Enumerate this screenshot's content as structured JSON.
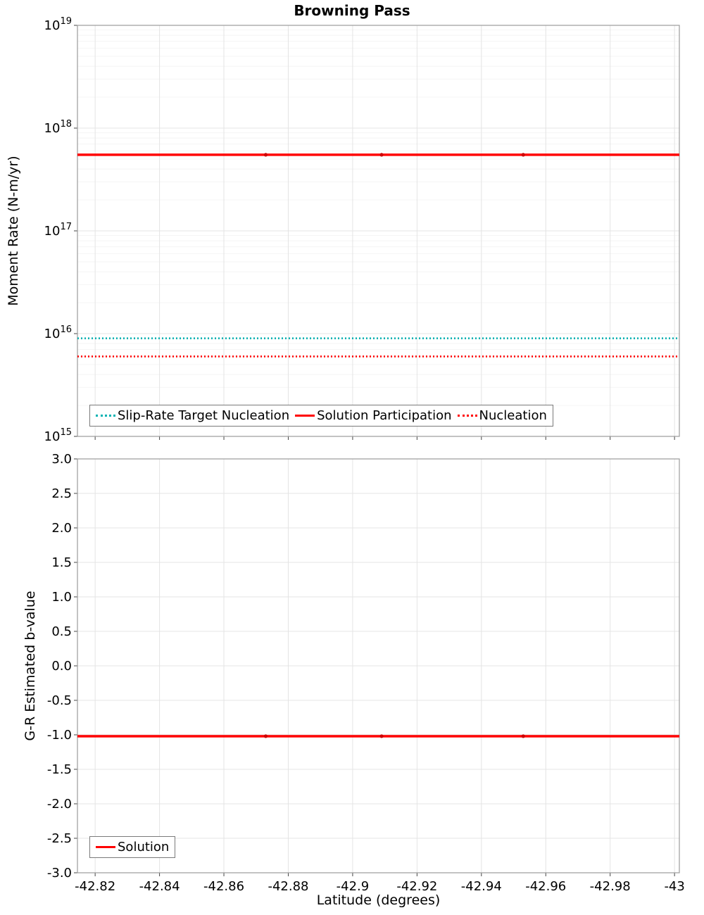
{
  "chart_data": [
    {
      "type": "line",
      "title": "Browning Pass",
      "ylabel": "Moment Rate (N-m/yr)",
      "yscale": "log",
      "ylog_min": 15,
      "ylog_max": 19,
      "y_tick_exponents": [
        19,
        18,
        17,
        16,
        15
      ],
      "xlim": [
        -42.8145,
        -43.0015
      ],
      "x_ticks": [
        -42.82,
        -42.84,
        -42.86,
        -42.88,
        -42.9,
        -42.92,
        -42.94,
        -42.96,
        -42.98,
        -43
      ],
      "x_tick_labels": [
        "-42.82",
        "-42.84",
        "-42.86",
        "-42.88",
        "-42.9",
        "-42.92",
        "-42.94",
        "-42.96",
        "-42.98",
        "-43"
      ],
      "grid": true,
      "legend_position": "bottom-left",
      "series": [
        {
          "name": "Slip-Rate Target Nucleation",
          "color": "#00b2b2",
          "style": "dotted",
          "value": 9000000000000000.0
        },
        {
          "name": "Solution Participation",
          "color": "#ff0000",
          "style": "solid",
          "value": 5.5e+17,
          "marker_color": "#cc0000",
          "marker_x": [
            -42.873,
            -42.909,
            -42.953
          ]
        },
        {
          "name": "Nucleation",
          "color": "#ff0000",
          "style": "dotted",
          "value": 6000000000000000.0
        }
      ]
    },
    {
      "type": "line",
      "title": "",
      "ylabel": "G-R Estimated b-value",
      "xlabel": "Latitude (degrees)",
      "yscale": "linear",
      "ylim": [
        -3.0,
        3.0
      ],
      "ytick_step": 0.5,
      "xlim": [
        -42.8145,
        -43.0015
      ],
      "x_ticks": [
        -42.82,
        -42.84,
        -42.86,
        -42.88,
        -42.9,
        -42.92,
        -42.94,
        -42.96,
        -42.98,
        -43
      ],
      "x_tick_labels": [
        "-42.82",
        "-42.84",
        "-42.86",
        "-42.88",
        "-42.9",
        "-42.92",
        "-42.94",
        "-42.96",
        "-42.98",
        "-43"
      ],
      "grid": true,
      "legend_position": "bottom-left",
      "series": [
        {
          "name": "Solution",
          "color": "#ff0000",
          "style": "solid",
          "value": -1.02,
          "marker_color": "#cc0000",
          "marker_x": [
            -42.873,
            -42.909,
            -42.953
          ]
        }
      ]
    }
  ],
  "colors": {
    "accent_red": "#ff0000",
    "accent_teal": "#00b2b2",
    "grid_major": "#e4e4e4",
    "grid_minor": "#f4f4f4",
    "frame": "#9b9b9b"
  }
}
